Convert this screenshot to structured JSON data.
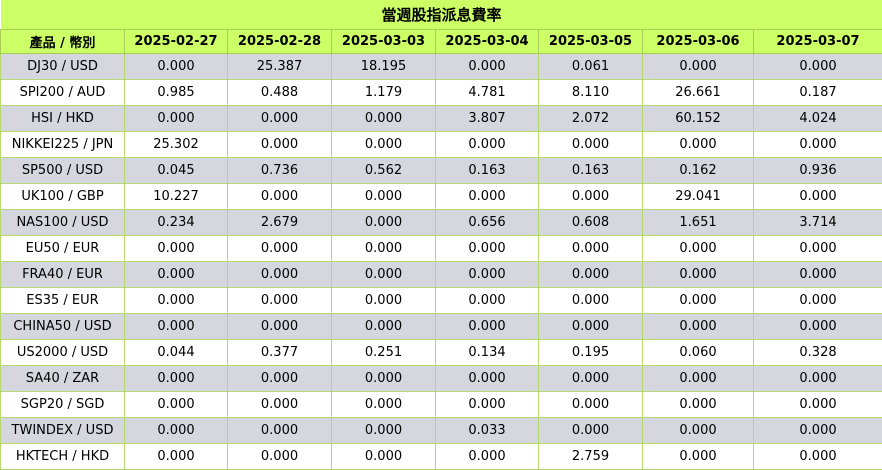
{
  "title": "當週股指派息費率",
  "header": {
    "symbol_label": "產品 / 幣別",
    "dates": [
      "2025-02-27",
      "2025-02-28",
      "2025-03-03",
      "2025-03-04",
      "2025-03-05",
      "2025-03-06",
      "2025-03-07"
    ]
  },
  "rows": [
    {
      "symbol": "DJ30 / USD",
      "values": [
        "0.000",
        "25.387",
        "18.195",
        "0.000",
        "0.061",
        "0.000",
        "0.000"
      ]
    },
    {
      "symbol": "SPI200 / AUD",
      "values": [
        "0.985",
        "0.488",
        "1.179",
        "4.781",
        "8.110",
        "26.661",
        "0.187"
      ]
    },
    {
      "symbol": "HSI / HKD",
      "values": [
        "0.000",
        "0.000",
        "0.000",
        "3.807",
        "2.072",
        "60.152",
        "4.024"
      ]
    },
    {
      "symbol": "NIKKEI225 / JPN",
      "values": [
        "25.302",
        "0.000",
        "0.000",
        "0.000",
        "0.000",
        "0.000",
        "0.000"
      ]
    },
    {
      "symbol": "SP500 / USD",
      "values": [
        "0.045",
        "0.736",
        "0.562",
        "0.163",
        "0.163",
        "0.162",
        "0.936"
      ]
    },
    {
      "symbol": "UK100 / GBP",
      "values": [
        "10.227",
        "0.000",
        "0.000",
        "0.000",
        "0.000",
        "29.041",
        "0.000"
      ]
    },
    {
      "symbol": "NAS100 / USD",
      "values": [
        "0.234",
        "2.679",
        "0.000",
        "0.656",
        "0.608",
        "1.651",
        "3.714"
      ]
    },
    {
      "symbol": "EU50 / EUR",
      "values": [
        "0.000",
        "0.000",
        "0.000",
        "0.000",
        "0.000",
        "0.000",
        "0.000"
      ]
    },
    {
      "symbol": "FRA40 / EUR",
      "values": [
        "0.000",
        "0.000",
        "0.000",
        "0.000",
        "0.000",
        "0.000",
        "0.000"
      ]
    },
    {
      "symbol": "ES35 / EUR",
      "values": [
        "0.000",
        "0.000",
        "0.000",
        "0.000",
        "0.000",
        "0.000",
        "0.000"
      ]
    },
    {
      "symbol": "CHINA50 / USD",
      "values": [
        "0.000",
        "0.000",
        "0.000",
        "0.000",
        "0.000",
        "0.000",
        "0.000"
      ]
    },
    {
      "symbol": "US2000 / USD",
      "values": [
        "0.044",
        "0.377",
        "0.251",
        "0.134",
        "0.195",
        "0.060",
        "0.328"
      ]
    },
    {
      "symbol": "SA40 / ZAR",
      "values": [
        "0.000",
        "0.000",
        "0.000",
        "0.000",
        "0.000",
        "0.000",
        "0.000"
      ]
    },
    {
      "symbol": "SGP20 / SGD",
      "values": [
        "0.000",
        "0.000",
        "0.000",
        "0.000",
        "0.000",
        "0.000",
        "0.000"
      ]
    },
    {
      "symbol": "TWINDEX / USD",
      "values": [
        "0.000",
        "0.000",
        "0.000",
        "0.033",
        "0.000",
        "0.000",
        "0.000"
      ]
    },
    {
      "symbol": "HKTECH / HKD",
      "values": [
        "0.000",
        "0.000",
        "0.000",
        "0.000",
        "2.759",
        "0.000",
        "0.000"
      ]
    }
  ]
}
